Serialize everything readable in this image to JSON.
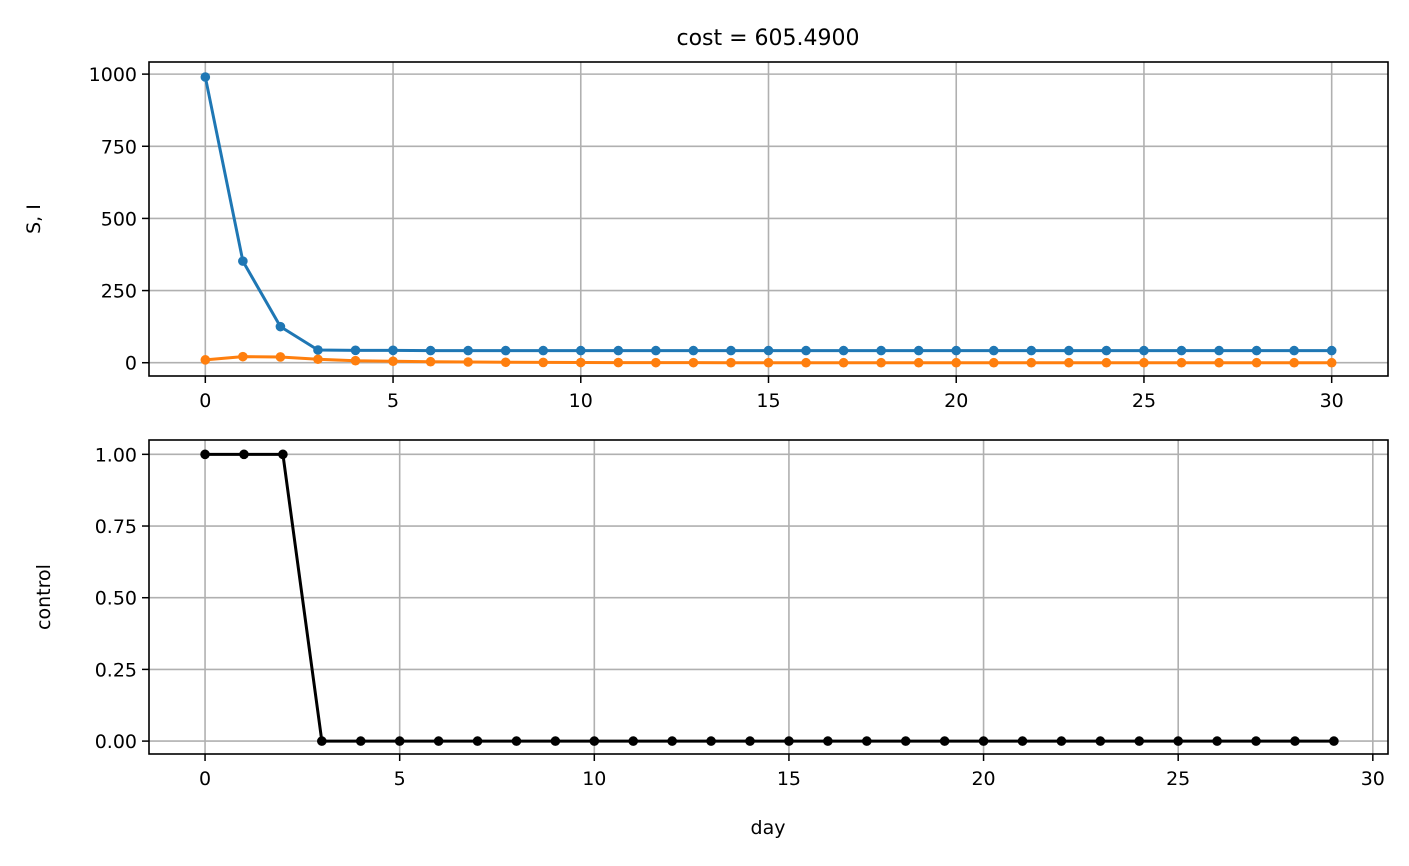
{
  "chart_data": [
    {
      "type": "line",
      "title": "cost = 605.4900",
      "xlabel": "",
      "ylabel": "S, I",
      "xlim": [
        -1.5,
        31.5
      ],
      "ylim": [
        -46,
        1042
      ],
      "xticks": [
        0,
        5,
        10,
        15,
        20,
        25,
        30
      ],
      "yticks": [
        0,
        250,
        500,
        750,
        1000
      ],
      "grid": true,
      "x": [
        0,
        1,
        2,
        3,
        4,
        5,
        6,
        7,
        8,
        9,
        10,
        11,
        12,
        13,
        14,
        15,
        16,
        17,
        18,
        19,
        20,
        21,
        22,
        23,
        24,
        25,
        26,
        27,
        28,
        29,
        30
      ],
      "series": [
        {
          "color": "#1f77b4",
          "marker": "o",
          "values": [
            990,
            352,
            125,
            44,
            43,
            43,
            42,
            42,
            42,
            42,
            42,
            42,
            42,
            42,
            42,
            42,
            42,
            42,
            42,
            42,
            42,
            42,
            42,
            42,
            42,
            42,
            42,
            42,
            42,
            42,
            42
          ]
        },
        {
          "color": "#ff7f0e",
          "marker": "o",
          "values": [
            10,
            21,
            20,
            12,
            7,
            5,
            3.5,
            2.5,
            1.5,
            1,
            0.7,
            0.5,
            0.3,
            0.2,
            0.1,
            0.1,
            0,
            0,
            0,
            0,
            0,
            0,
            0,
            0,
            0,
            0,
            0,
            0,
            0,
            0,
            0
          ]
        }
      ]
    },
    {
      "type": "line",
      "title": "",
      "xlabel": "day",
      "ylabel": "control",
      "xlim": [
        -1.44,
        30.39
      ],
      "ylim": [
        -0.045,
        1.05
      ],
      "xticks": [
        0,
        5,
        10,
        15,
        20,
        25,
        30
      ],
      "yticks": [
        0,
        0.25,
        0.5,
        0.75,
        1.0
      ],
      "ytick_labels": [
        "0.00",
        "0.25",
        "0.50",
        "0.75",
        "1.00"
      ],
      "grid": true,
      "x": [
        0,
        1,
        2,
        3,
        4,
        5,
        6,
        7,
        8,
        9,
        10,
        11,
        12,
        13,
        14,
        15,
        16,
        17,
        18,
        19,
        20,
        21,
        22,
        23,
        24,
        25,
        26,
        27,
        28,
        29
      ],
      "series": [
        {
          "color": "#000000",
          "marker": "o",
          "values": [
            1,
            1,
            1,
            0,
            0,
            0,
            0,
            0,
            0,
            0,
            0,
            0,
            0,
            0,
            0,
            0,
            0,
            0,
            0,
            0,
            0,
            0,
            0,
            0,
            0,
            0,
            0,
            0,
            0,
            0
          ]
        }
      ]
    }
  ]
}
